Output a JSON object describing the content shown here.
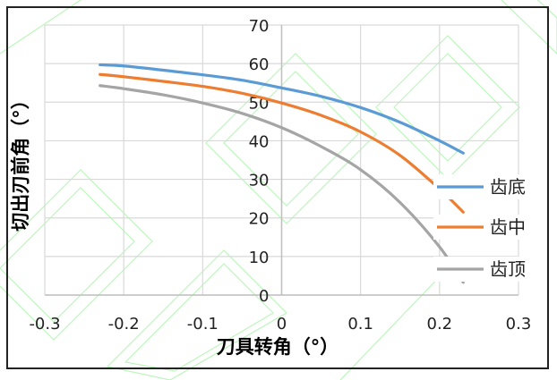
{
  "chart_data": {
    "type": "line",
    "xlabel": "刀具转角（°）",
    "ylabel": "切出刃前角（°）",
    "xlim": [
      -0.3,
      0.3
    ],
    "ylim": [
      0,
      70
    ],
    "x_ticks": [
      "-0.3",
      "-0.2",
      "-0.1",
      "0",
      "0.1",
      "0.2",
      "0.3"
    ],
    "y_ticks": [
      "0",
      "10",
      "20",
      "30",
      "40",
      "50",
      "60",
      "70"
    ],
    "grid": true,
    "legend_position": "right",
    "series": [
      {
        "name": "齿底",
        "color": "#5b9bd5",
        "points": [
          [
            -0.23,
            59.7
          ],
          [
            -0.2,
            59.4
          ],
          [
            -0.15,
            58.3
          ],
          [
            -0.1,
            57.1
          ],
          [
            -0.05,
            55.7
          ],
          [
            0.0,
            53.7
          ],
          [
            0.05,
            51.5
          ],
          [
            0.1,
            48.6
          ],
          [
            0.15,
            44.8
          ],
          [
            0.2,
            40.0
          ],
          [
            0.23,
            36.8
          ]
        ]
      },
      {
        "name": "齿中",
        "color": "#ed7d31",
        "points": [
          [
            -0.23,
            57.2
          ],
          [
            -0.2,
            56.6
          ],
          [
            -0.15,
            55.4
          ],
          [
            -0.1,
            54.1
          ],
          [
            -0.05,
            52.3
          ],
          [
            0.0,
            49.8
          ],
          [
            0.05,
            46.6
          ],
          [
            0.1,
            42.3
          ],
          [
            0.15,
            36.2
          ],
          [
            0.2,
            27.5
          ],
          [
            0.23,
            21.5
          ]
        ]
      },
      {
        "name": "齿顶",
        "color": "#a5a5a5",
        "points": [
          [
            -0.23,
            54.3
          ],
          [
            -0.2,
            53.5
          ],
          [
            -0.15,
            51.9
          ],
          [
            -0.1,
            49.8
          ],
          [
            -0.05,
            47.1
          ],
          [
            0.0,
            43.4
          ],
          [
            0.05,
            38.5
          ],
          [
            0.1,
            32.5
          ],
          [
            0.15,
            24.0
          ],
          [
            0.2,
            12.5
          ],
          [
            0.23,
            3.3
          ]
        ]
      }
    ]
  }
}
